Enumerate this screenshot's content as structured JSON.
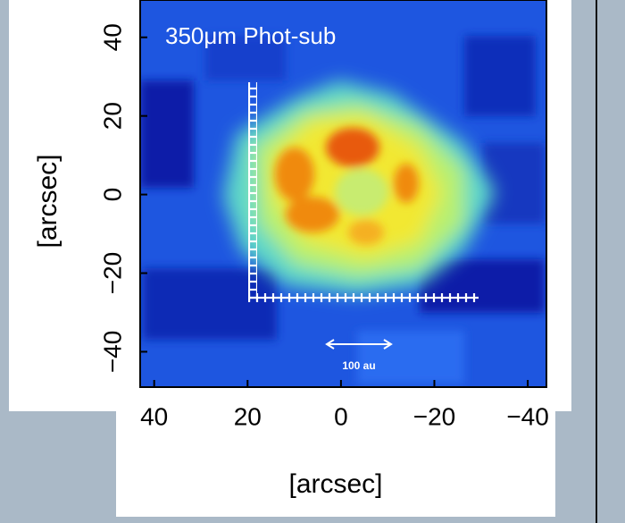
{
  "chart_data": {
    "type": "image",
    "title": "350μm Phot-sub",
    "annotation": "100 au",
    "x_label": "[arcsec]",
    "y_label": "[arcsec]",
    "xlim": [
      43,
      -44
    ],
    "ylim": [
      -49,
      49.5
    ],
    "xticks": [
      40,
      20,
      0,
      {
        "value": -20,
        "label": "−20"
      },
      {
        "value": -40,
        "label": "−40"
      }
    ],
    "yticks": [
      {
        "value": -40,
        "label": "−40"
      },
      {
        "value": -20,
        "label": "−20"
      },
      0,
      20,
      40
    ]
  }
}
